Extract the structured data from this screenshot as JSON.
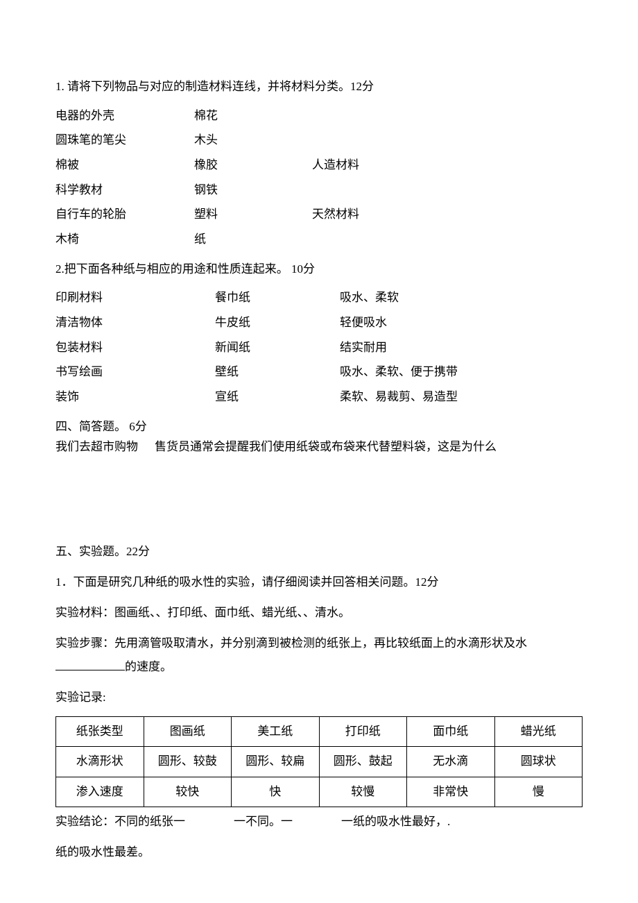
{
  "q1": {
    "prompt": "1. 请将下列物品与对应的制造材料连线，并将材料分类。12分",
    "left": [
      "电器的外壳",
      "圆珠笔的笔尖",
      "棉被",
      "科学教材",
      "自行车的轮胎",
      "木椅"
    ],
    "mid": [
      "棉花",
      "木头",
      "橡胶",
      "钢铁",
      "塑料",
      "纸"
    ],
    "right_top": "人造材料",
    "right_bottom": "天然材料"
  },
  "q2": {
    "prompt": "2.把下面各种纸与相应的用途和性质连起来。 10分",
    "left": [
      "印刷材料",
      "清洁物体",
      "包装材料",
      "书写绘画",
      "装饰"
    ],
    "mid": [
      "餐巾纸",
      "牛皮纸",
      "新闻纸",
      "壁纸",
      "宣纸"
    ],
    "right": [
      "吸水、柔软",
      "轻便吸水",
      "结实耐用",
      "吸水、柔软、便于携带",
      "柔软、易裁剪、易造型"
    ]
  },
  "sec4": {
    "title": "四、简答题。 6分",
    "body_a": "我们去超市购物",
    "body_b": "售货员通常会提醒我们使用纸袋或布袋来代替塑料袋，这是为什么"
  },
  "sec5": {
    "title": "五、实验题。22分",
    "p1": "1．下面是研究几种纸的吸水性的实验，请仔细阅读并回答相关问题。12分",
    "p2": "实验材料：图画纸、、打印纸、面巾纸、蜡光纸、、清水。",
    "p3a": "实验步骤：先用滴管吸取清水，并分别滴到被检测的纸张上，再比较纸面上的水滴形状及水",
    "p3b": "的速度。",
    "p4": "实验记录:",
    "table": {
      "rows": [
        [
          "纸张类型",
          "图画纸",
          "美工纸",
          "打印纸",
          "面巾纸",
          "蜡光纸"
        ],
        [
          "水滴形状",
          "圆形、较鼓",
          "圆形、较扁",
          "圆形、鼓起",
          "无水滴",
          "圆球状"
        ],
        [
          "渗入速度",
          "较快",
          "快",
          "较慢",
          "非常快",
          "慢"
        ]
      ]
    },
    "conclusion_a": "实验结论：不同的纸张一",
    "conclusion_b": "一不同。一",
    "conclusion_c": "一纸的吸水性最好，.",
    "p_last": "纸的吸水性最差。"
  }
}
